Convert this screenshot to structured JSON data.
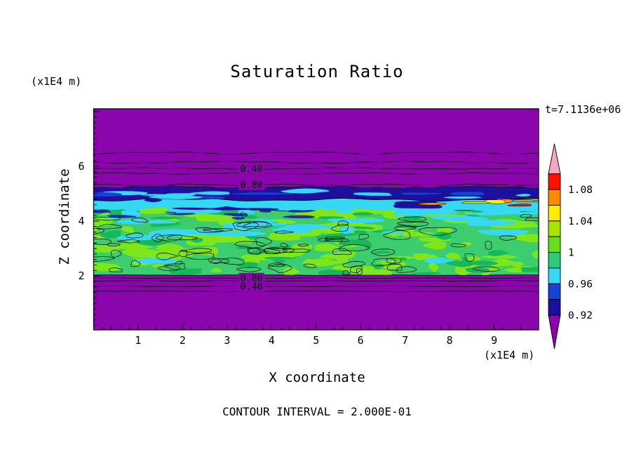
{
  "title": "Saturation Ratio",
  "annotations": {
    "time": "t=7.1136e+06",
    "contour_interval_text": "CONTOUR INTERVAL = 2.000E-01"
  },
  "axes": {
    "x": {
      "label": "X coordinate",
      "unit": "(x1E4 m)",
      "ticks": [
        1,
        2,
        3,
        4,
        5,
        6,
        7,
        8,
        9
      ],
      "range": [
        0,
        10
      ]
    },
    "z": {
      "label": "Z coordinate",
      "unit": "(x1E4 m)",
      "ticks": [
        2,
        4,
        6
      ],
      "range": [
        0.03,
        8.1
      ]
    }
  },
  "chart_data": {
    "type": "contour-heatmap",
    "title": "Saturation Ratio",
    "xlabel": "X coordinate (x1E4 m)",
    "ylabel": "Z coordinate (x1E4 m)",
    "time_annotation": "t=7.1136e+06",
    "contour_interval": 0.2,
    "x_range": [
      0,
      10
    ],
    "z_range": [
      0.03,
      8.1
    ],
    "field_description": "Horizontally layered saturation-ratio field: purple background (below scale) above and below; speckled green/cyan band (~0.96-1.02) between z=2.0 and z=4.45; cyan layer (~0.96) z=4.4-4.8; dark navy layer (~0.92) z=4.8-5.25; small orange/red pockets (~1.06-1.10) near x=7.5-9.9 at z~4.5; thin 0.40 and 0.80 contour lines in purple zones above and below the band",
    "bands": [
      {
        "name": "background",
        "value": 0.8,
        "color": "#8A06AC"
      },
      {
        "name": "main-green-band",
        "z_top": 4.45,
        "z_bottom": 2.03,
        "value": 1.0,
        "color": "#3CCD6E"
      },
      {
        "name": "cyan-layer",
        "z_top": 4.84,
        "z_bottom": 4.36,
        "value": 0.96,
        "color": "#35D8F2"
      },
      {
        "name": "navy-layer",
        "z_top": 5.24,
        "z_bottom": 4.78,
        "value": 0.92,
        "color": "#1B119E"
      }
    ],
    "contour_lines_z": [
      6.49,
      6.15,
      5.92,
      5.74,
      5.33,
      1.92,
      1.82,
      1.62,
      1.44
    ],
    "contour_labels": [
      {
        "text": "0.40",
        "x": 3.55,
        "z": 5.92
      },
      {
        "text": "0.80",
        "x": 3.55,
        "z": 5.33
      },
      {
        "text": "0.80",
        "x": 3.55,
        "z": 1.92
      },
      {
        "text": "0.40",
        "x": 3.55,
        "z": 1.62
      }
    ],
    "colorbar": {
      "max": 1.1,
      "step": 0.02,
      "segments_top_to_bottom": [
        "#FA1400",
        "#FF8C00",
        "#FFEC00",
        "#A8E400",
        "#68DD1E",
        "#2FC97A",
        "#38D7F5",
        "#1742D8",
        "#1B119E"
      ],
      "above_max_color": "#F2A8C4",
      "below_min_color": "#8A06AC",
      "labels": [
        {
          "text": "1.08",
          "value": 1.08
        },
        {
          "text": "1.04",
          "value": 1.04
        },
        {
          "text": "1",
          "value": 1.0
        },
        {
          "text": "0.96",
          "value": 0.96
        },
        {
          "text": "0.92",
          "value": 0.92
        }
      ]
    },
    "texture": {
      "seed": 7,
      "colors": {
        "green_bright": "#7FE61A",
        "green_dark": "#17B85C",
        "cyan": "#38D7F5",
        "navy": "#1B119E",
        "blue": "#1742D8",
        "warm": [
          "#FF8C00",
          "#FA1400",
          "#FFEC00"
        ]
      },
      "counts": {
        "bright": 110,
        "dark": 45,
        "cyan_patches": 30,
        "outlines": 75,
        "warm_streaks": 6,
        "navy_cyan_streaks": 14,
        "cyan_navy_blobs": 8
      }
    }
  }
}
